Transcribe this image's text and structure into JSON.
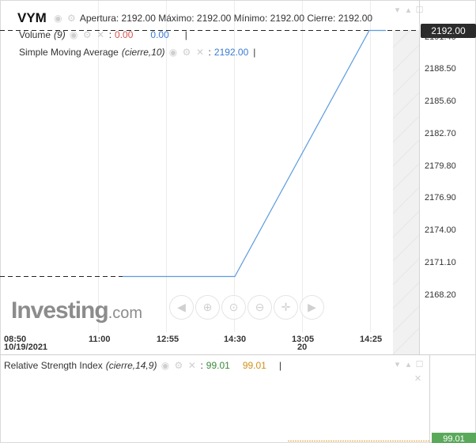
{
  "header": {
    "symbol": "VYM",
    "ohlc_text": "Apertura: 2192.00 Máximo: 2192.00 Mínimo: 2192.00 Cierre: 2192.00"
  },
  "indicators": {
    "volume": {
      "label": "Volume",
      "param": "(9)",
      "value1": "0.00",
      "value2": "0.00"
    },
    "sma": {
      "label": "Simple Moving Average",
      "param": "(cierre,10)",
      "value": "2192.00"
    }
  },
  "price_tag": "2192.00",
  "y_axis_labels": [
    "2191.40",
    "2188.50",
    "2185.60",
    "2182.70",
    "2179.80",
    "2176.90",
    "2174.00",
    "2171.10",
    "2168.20"
  ],
  "x_axis_labels": [
    {
      "time": "08:50",
      "date": "10/19/2021"
    },
    {
      "time": "11:00",
      "date": ""
    },
    {
      "time": "12:55",
      "date": ""
    },
    {
      "time": "14:30",
      "date": ""
    },
    {
      "time": "13:05",
      "date": "20"
    },
    {
      "time": "14:25",
      "date": ""
    }
  ],
  "rsi": {
    "label": "Relative Strength Index",
    "param": "(cierre,14,9)",
    "value1": "99.01",
    "value2": "99.01",
    "tag": "99.01"
  },
  "logo": {
    "main": "Investing",
    "suffix": ".com"
  },
  "colors": {
    "line": "#5b9be0",
    "rsi_tag": "#5aa95a",
    "price_tag": "#2b2b2b",
    "volume_red": "#d9534f",
    "sma_blue": "#3a7bd5"
  },
  "nav_icons": [
    "chevron-left-icon",
    "zoom-in-icon",
    "zoom-reset-icon",
    "zoom-out-icon",
    "crosshair-icon",
    "chevron-right-icon"
  ],
  "chart_data": {
    "type": "line",
    "x": [
      "08:50",
      "11:00",
      "12:55",
      "14:30",
      "13:05",
      "14:25"
    ],
    "series": [
      {
        "values": [
          2169.7,
          2169.7,
          2169.7,
          2169.7,
          null,
          2192.0
        ]
      }
    ],
    "ylim": [
      2166.0,
      2192.8
    ]
  }
}
